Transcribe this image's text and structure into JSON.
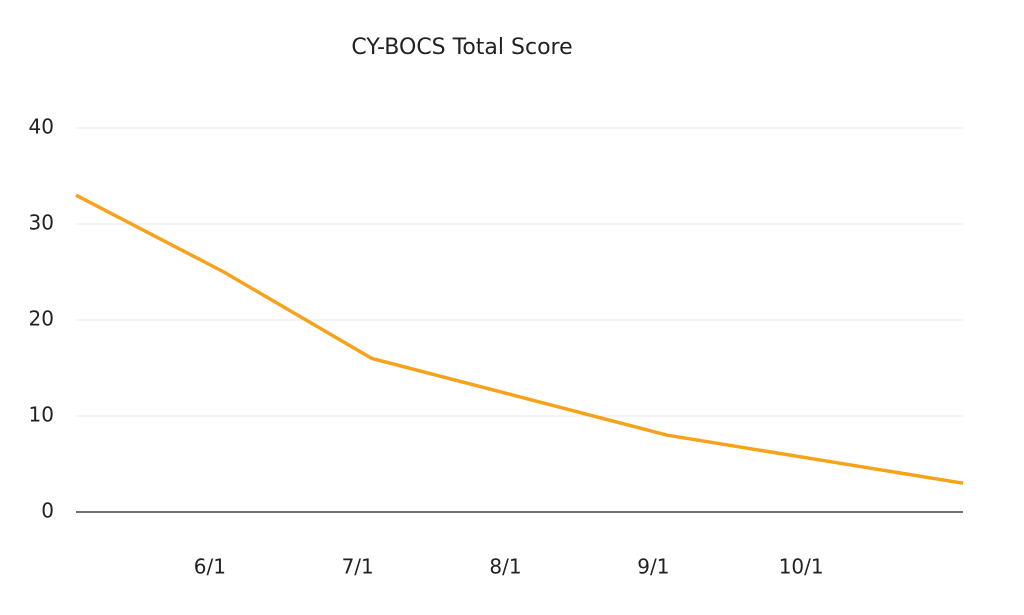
{
  "chart_data": {
    "type": "line",
    "title": "CY-BOCS Total Score",
    "categories": [
      null,
      "6/1",
      "7/1",
      "8/1",
      "9/1",
      "10/1",
      null
    ],
    "series": [
      {
        "name": "CY-BOCS Total Score",
        "color": "#f7a21b",
        "values": [
          33,
          25,
          16,
          12,
          8,
          5.5,
          3
        ]
      }
    ],
    "ylim": [
      0,
      40
    ],
    "yticks": [
      0,
      10,
      20,
      30,
      40
    ],
    "grid": true
  }
}
